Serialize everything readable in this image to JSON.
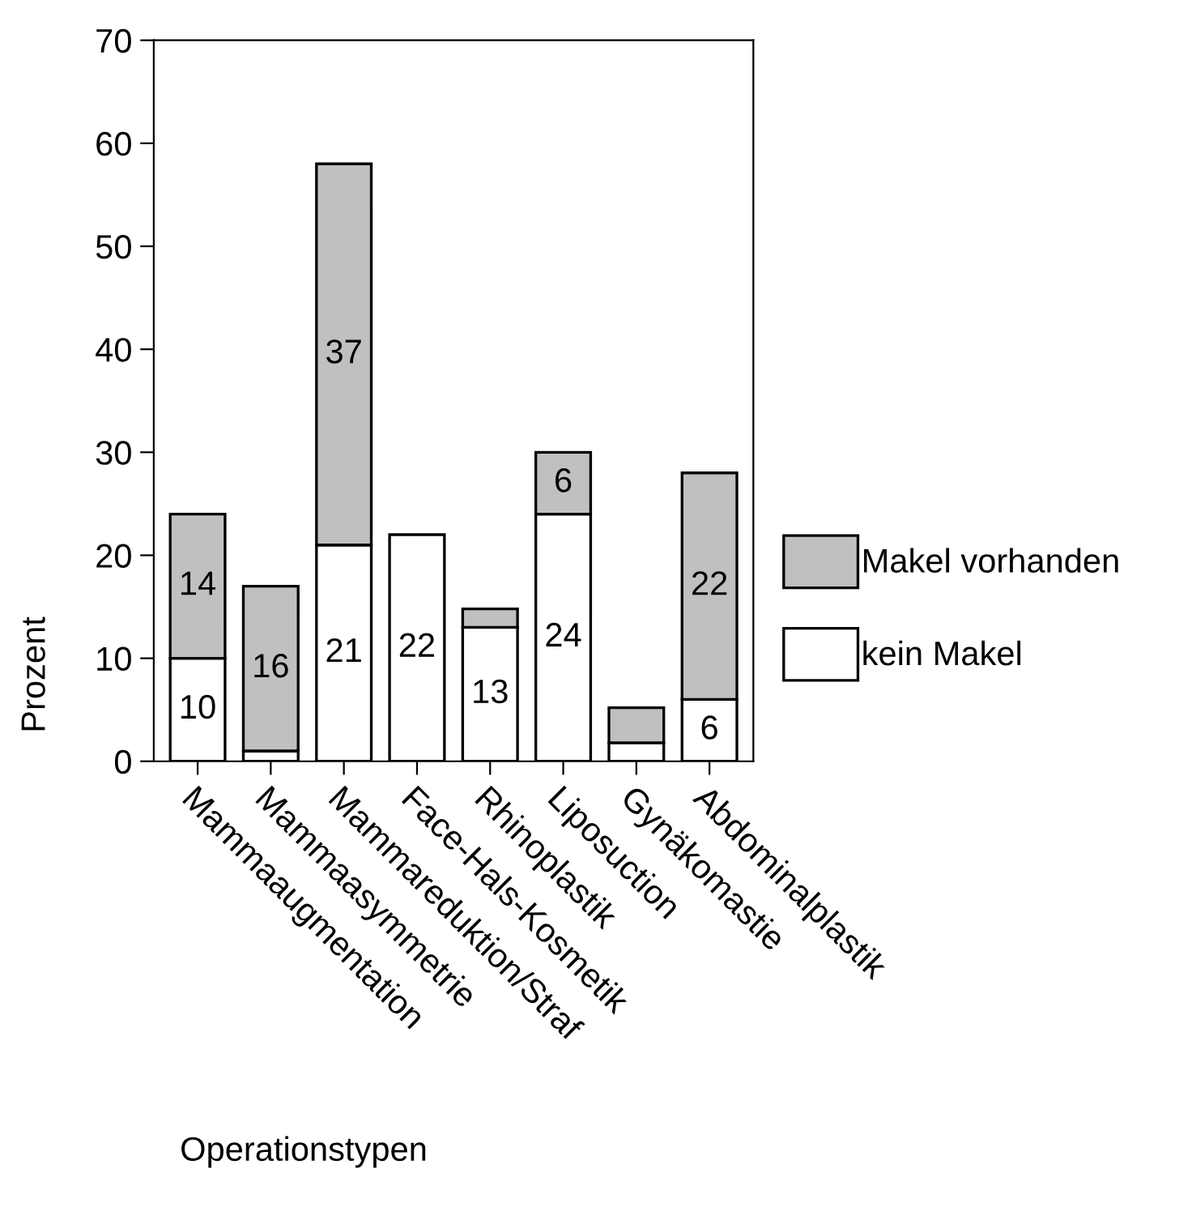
{
  "chart_data": {
    "type": "bar",
    "stacked": true,
    "xlabel": "Operationstypen",
    "ylabel": "Prozent",
    "categories": [
      "Mammaaugmentation",
      "Mammaasymmetrie",
      "Mammareduktion/Straf",
      "Face-Hals-Kosmetik",
      "Rhinoplastik",
      "Liposuction",
      "Gynäkomastie",
      "Abdominalplastik"
    ],
    "series": [
      {
        "name": "kein Makel",
        "color": "#ffffff",
        "values": [
          10,
          1,
          21,
          22,
          13,
          24,
          1.8,
          6
        ],
        "value_labels": [
          "10",
          null,
          "21",
          "22",
          "13",
          "24",
          null,
          "6"
        ]
      },
      {
        "name": "Makel vorhanden",
        "color": "#c0c0c0",
        "values": [
          14,
          16,
          37,
          null,
          1.8,
          6,
          3.4,
          22
        ],
        "value_labels": [
          "14",
          "16",
          "37",
          null,
          null,
          "6",
          null,
          "22"
        ]
      }
    ],
    "ylim": [
      0,
      70
    ],
    "yticks": [
      0,
      10,
      20,
      30,
      40,
      50,
      60,
      70
    ],
    "grid": false,
    "legend": "right"
  }
}
